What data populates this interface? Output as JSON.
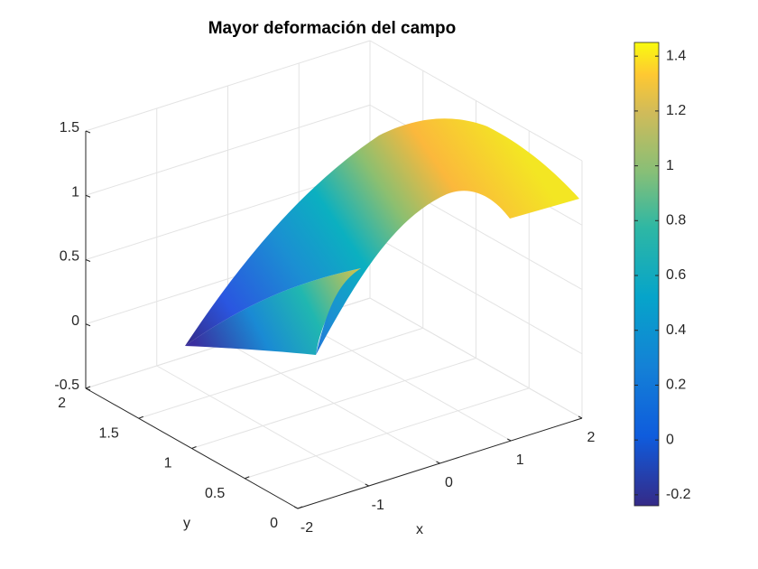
{
  "chart_data": {
    "type": "surface",
    "title": "Mayor deformación del campo",
    "xlabel": "x",
    "ylabel": "y",
    "xlim": [
      -2,
      2
    ],
    "xticks": [
      -2,
      -1,
      0,
      1,
      2
    ],
    "ylim": [
      0,
      2
    ],
    "yticks": [
      0,
      0.5,
      1,
      1.5,
      2
    ],
    "zlim": [
      -0.5,
      1.5
    ],
    "zticks": [
      -0.5,
      0,
      0.5,
      1,
      1.5
    ],
    "grid": true,
    "colorbar": {
      "clim": [
        -0.24,
        1.45
      ],
      "ticks": [
        -0.2,
        0,
        0.2,
        0.4,
        0.6,
        0.8,
        1,
        1.2,
        1.4
      ]
    }
  }
}
